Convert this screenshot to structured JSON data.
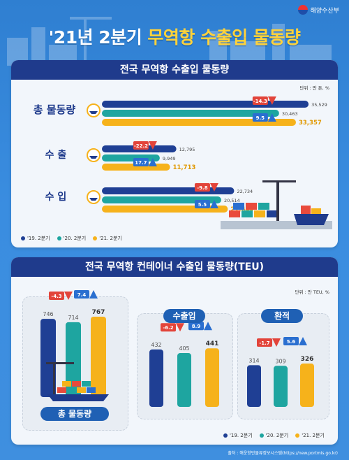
{
  "header": {
    "ministry": "해양수산부",
    "title_prefix": "'21년 2분기 ",
    "title_highlight": "무역항 수출입 물동량"
  },
  "section1": {
    "title": "전국 무역항 수출입 물동량",
    "unit": "단위 : 만 톤, %",
    "groups": [
      {
        "label": "총 물동량"
      },
      {
        "label": "수  출"
      },
      {
        "label": "수  입"
      }
    ]
  },
  "section2": {
    "title": "전국 무역항 컨테이너 수출입 물동량(TEU)",
    "unit": "단위 : 만 TEU, %",
    "panels": [
      {
        "label": "총 물동량"
      },
      {
        "label": "수출입"
      },
      {
        "label": "환적"
      }
    ]
  },
  "legend": [
    {
      "label": "'19. 2분기",
      "color": "#1f3f94"
    },
    {
      "label": "'20. 2분기",
      "color": "#1ea5a0"
    },
    {
      "label": "'21. 2분기",
      "color": "#f6b21b"
    }
  ],
  "source": "출처 : 해운항만물류정보시스템(https://new.portmis.go.kr)",
  "colors": {
    "s2019": "#1f3f94",
    "s2020": "#1ea5a0",
    "s2021": "#f6b21b",
    "down": "#e2443a",
    "up": "#2a6fd0"
  },
  "chart_data": [
    {
      "type": "bar",
      "orientation": "horizontal",
      "title": "전국 무역항 수출입 물동량",
      "categories": [
        "총 물동량",
        "수  출",
        "수  입"
      ],
      "series": [
        {
          "name": "'19. 2분기",
          "values": [
            35529,
            12795,
            22734
          ],
          "labels": [
            "35,529",
            "12,795",
            "22,734"
          ]
        },
        {
          "name": "'20. 2분기",
          "values": [
            30463,
            9949,
            20514
          ],
          "labels": [
            "30,463",
            "9,949",
            "20,514"
          ]
        },
        {
          "name": "'21. 2분기",
          "values": [
            33357,
            11713,
            21644
          ],
          "labels": [
            "33,357",
            "11,713",
            "21,644"
          ]
        }
      ],
      "changes": [
        {
          "down": "-14.3",
          "up": "9.5"
        },
        {
          "down": "-22.2",
          "up": "17.7"
        },
        {
          "down": "-9.8",
          "up": "5.5"
        }
      ],
      "xlim": [
        0,
        36000
      ]
    },
    {
      "type": "bar",
      "title": "총 물동량",
      "categories": [
        "'19. 2분기",
        "'20. 2분기",
        "'21. 2분기"
      ],
      "values": [
        746,
        714,
        767
      ],
      "changes": {
        "down": "-4.3",
        "up": "7.4"
      },
      "ylim": [
        0,
        800
      ]
    },
    {
      "type": "bar",
      "title": "수출입",
      "categories": [
        "'19. 2분기",
        "'20. 2분기",
        "'21. 2분기"
      ],
      "values": [
        432,
        405,
        441
      ],
      "changes": {
        "down": "-6.2",
        "up": "8.9"
      },
      "ylim": [
        0,
        500
      ]
    },
    {
      "type": "bar",
      "title": "환적",
      "categories": [
        "'19. 2분기",
        "'20. 2분기",
        "'21. 2분기"
      ],
      "values": [
        314,
        309,
        326
      ],
      "changes": {
        "down": "-1.7",
        "up": "5.6"
      },
      "ylim": [
        0,
        500
      ]
    }
  ]
}
